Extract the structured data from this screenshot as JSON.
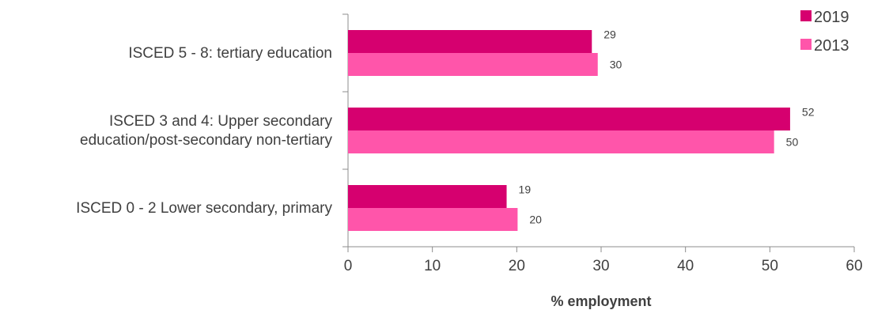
{
  "chart_data": {
    "type": "bar",
    "orientation": "horizontal",
    "categories": [
      [
        "ISCED 5 - 8: tertiary education"
      ],
      [
        "ISCED 3 and 4: Upper secondary",
        "education/post-secondary non-tertiary"
      ],
      [
        "ISCED 0 - 2 Lower secondary, primary"
      ]
    ],
    "series": [
      {
        "name": "2019",
        "color": "#d6006f",
        "values": [
          29,
          52,
          19
        ]
      },
      {
        "name": "2013",
        "color": "#ff55aa",
        "values": [
          30,
          50,
          20
        ]
      }
    ],
    "bar_values": [
      {
        "name": "2019",
        "values": [
          28.9,
          52.4,
          18.8
        ]
      },
      {
        "name": "2013",
        "values": [
          29.6,
          50.5,
          20.1
        ]
      }
    ],
    "xlabel": "% employment",
    "xlim": [
      0,
      60
    ],
    "xticks": [
      0,
      10,
      20,
      30,
      40,
      50,
      60
    ],
    "legend": "top-right",
    "grid": false
  }
}
